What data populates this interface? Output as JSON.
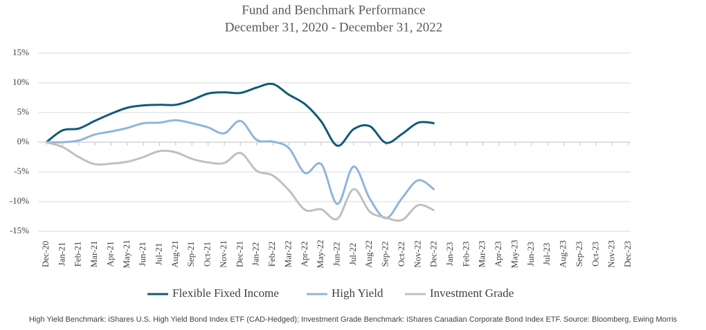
{
  "chart_data": {
    "type": "line",
    "title": "Fund and Benchmark Performance",
    "subtitle": "December 31, 2020 - December 31, 2022",
    "categories": [
      "Dec-20",
      "Jan-21",
      "Feb-21",
      "Mar-21",
      "Apr-21",
      "May-21",
      "Jun-21",
      "Jul-21",
      "Aug-21",
      "Sep-21",
      "Oct-21",
      "Nov-21",
      "Dec-21",
      "Jan-22",
      "Feb-22",
      "Mar-22",
      "Apr-22",
      "May-22",
      "Jun-22",
      "Jul-22",
      "Aug-22",
      "Sep-22",
      "Oct-22",
      "Nov-22",
      "Dec-22",
      "Jan-23",
      "Feb-23",
      "Mar-23",
      "Apr-23",
      "May-23",
      "Jun-23",
      "Jul-23",
      "Aug-23",
      "Sep-23",
      "Oct-23",
      "Nov-23",
      "Dec-23"
    ],
    "series": [
      {
        "name": "Flexible Fixed Income",
        "color": "#0e5a78",
        "values": [
          0,
          2.0,
          2.3,
          3.6,
          4.8,
          5.8,
          6.2,
          6.3,
          6.3,
          7.1,
          8.2,
          8.4,
          8.3,
          9.2,
          9.8,
          8.0,
          6.4,
          3.5,
          -0.6,
          2.2,
          2.7,
          -0.1,
          1.4,
          3.3,
          3.2,
          null,
          null,
          null,
          null,
          null,
          null,
          null,
          null,
          null,
          null,
          null,
          null
        ]
      },
      {
        "name": "High Yield",
        "color": "#8fb4dc",
        "values": [
          0,
          0,
          0.3,
          1.3,
          1.8,
          2.4,
          3.2,
          3.3,
          3.7,
          3.2,
          2.5,
          1.5,
          3.6,
          0.4,
          0.1,
          -1.0,
          -5.2,
          -3.7,
          -10.4,
          -4.1,
          -9.5,
          -12.8,
          -9.4,
          -6.4,
          -8.0,
          null,
          null,
          null,
          null,
          null,
          null,
          null,
          null,
          null,
          null,
          null,
          null
        ]
      },
      {
        "name": "Investment Grade",
        "color": "#bfbfbf",
        "values": [
          0,
          -0.8,
          -2.5,
          -3.7,
          -3.6,
          -3.3,
          -2.5,
          -1.5,
          -1.7,
          -2.8,
          -3.4,
          -3.5,
          -1.8,
          -4.8,
          -5.6,
          -8.1,
          -11.4,
          -11.3,
          -12.9,
          -7.9,
          -11.7,
          -12.7,
          -13.1,
          -10.6,
          -11.5,
          null,
          null,
          null,
          null,
          null,
          null,
          null,
          null,
          null,
          null,
          null,
          null
        ]
      }
    ],
    "ylim": [
      -15,
      15
    ],
    "yticks": [
      {
        "value": -15,
        "label": "-15%"
      },
      {
        "value": -10,
        "label": "-10%"
      },
      {
        "value": -5,
        "label": "-5%"
      },
      {
        "value": 0,
        "label": "0%"
      },
      {
        "value": 5,
        "label": "5%"
      },
      {
        "value": 10,
        "label": "10%"
      },
      {
        "value": 15,
        "label": "15%"
      }
    ],
    "grid": true,
    "legend": "bottom",
    "source": "High Yield Benchmark: iShares U.S. High Yield Bond Index ETF (CAD-Hedged); Investment Grade Benchmark: iShares Canadian Corporate Bond Index ETF.  Source: Bloomberg, Ewing Morris"
  }
}
